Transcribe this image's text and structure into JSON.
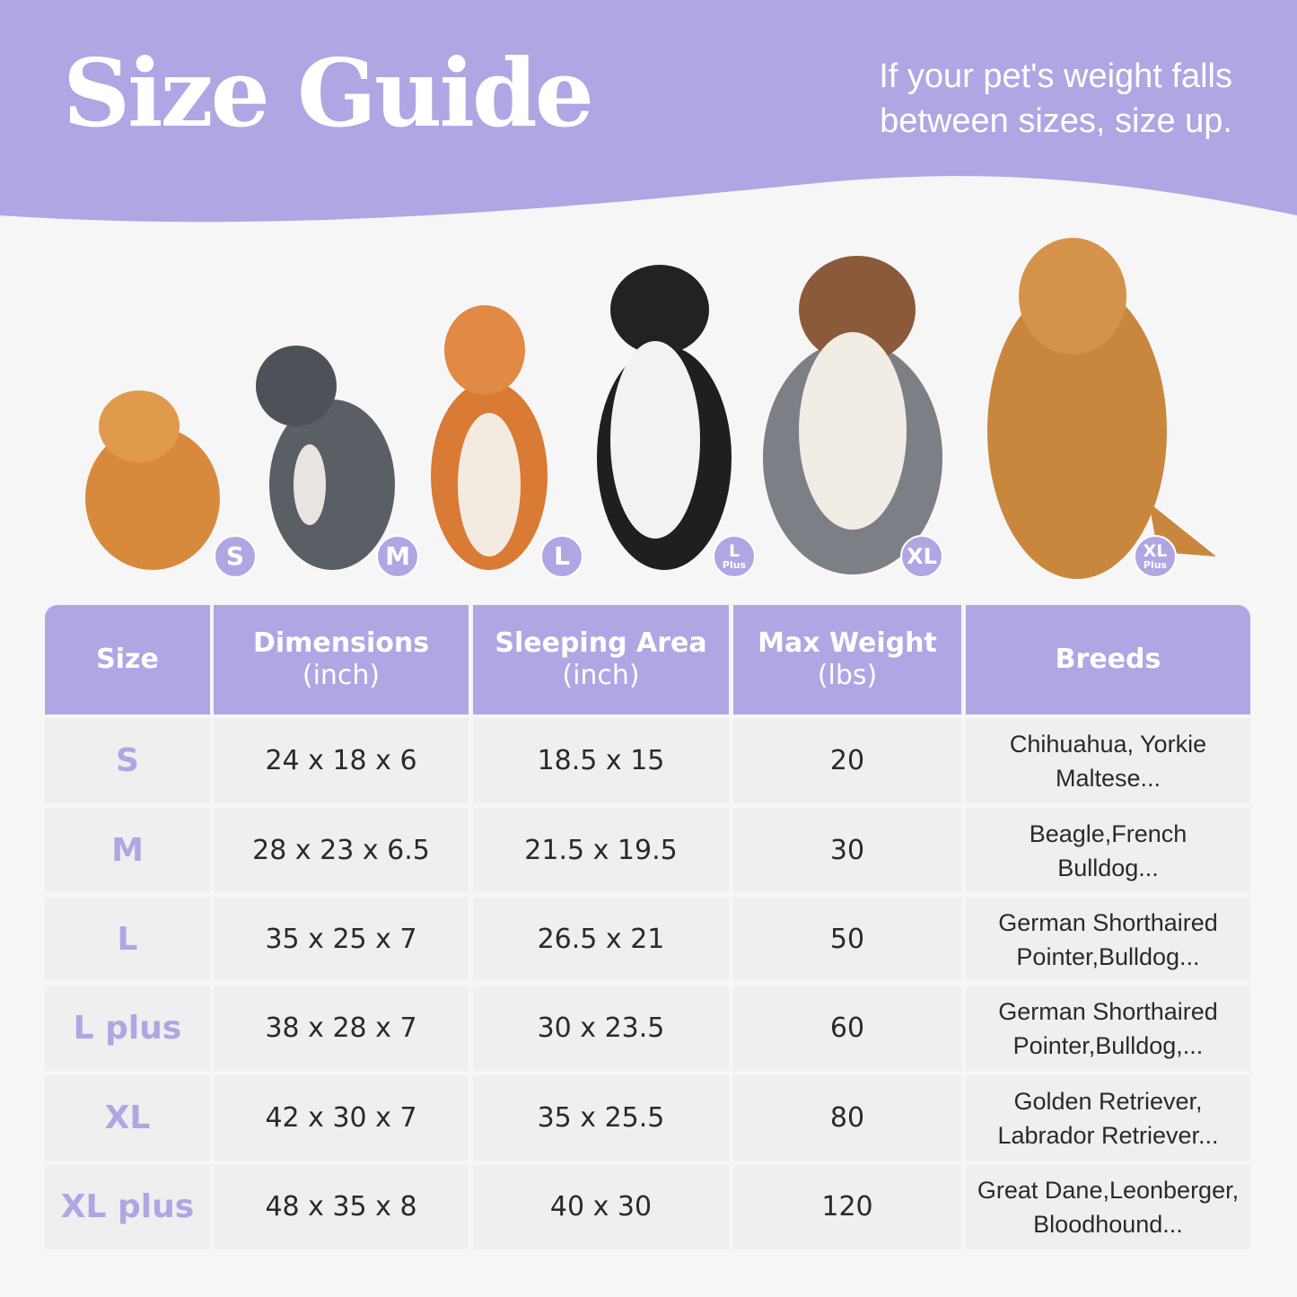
{
  "header": {
    "title": "Size Guide",
    "tip_line1": "If your pet's weight falls",
    "tip_line2": "between sizes, size up."
  },
  "colors": {
    "accent": "#b0a6e3",
    "background": "#f6f6f6",
    "row": "#eeefee",
    "text": "#2a2a2a"
  },
  "dogs": [
    {
      "badge": "S",
      "sub": ""
    },
    {
      "badge": "M",
      "sub": ""
    },
    {
      "badge": "L",
      "sub": ""
    },
    {
      "badge": "L",
      "sub": "Plus"
    },
    {
      "badge": "XL",
      "sub": ""
    },
    {
      "badge": "XL",
      "sub": "Plus"
    }
  ],
  "table": {
    "headers": [
      [
        "Size",
        ""
      ],
      [
        "Dimensions",
        "(inch)"
      ],
      [
        "Sleeping Area",
        "(inch)"
      ],
      [
        "Max Weight",
        "(lbs)"
      ],
      [
        "Breeds",
        ""
      ]
    ],
    "rows": [
      {
        "size": "S",
        "dimensions": "24 x 18 x 6",
        "sleeping": "18.5 x 15",
        "weight": "20",
        "breeds1": "Chihuahua, Yorkie",
        "breeds2": "Maltese..."
      },
      {
        "size": "M",
        "dimensions": "28 x 23 x 6.5",
        "sleeping": "21.5 x 19.5",
        "weight": "30",
        "breeds1": "Beagle,French",
        "breeds2": "Bulldog..."
      },
      {
        "size": "L",
        "dimensions": "35 x 25 x 7",
        "sleeping": "26.5 x 21",
        "weight": "50",
        "breeds1": "German Shorthaired",
        "breeds2": "Pointer,Bulldog..."
      },
      {
        "size": "L plus",
        "dimensions": "38 x 28 x 7",
        "sleeping": "30 x 23.5",
        "weight": "60",
        "breeds1": "German Shorthaired",
        "breeds2": "Pointer,Bulldog,..."
      },
      {
        "size": "XL",
        "dimensions": "42 x 30 x 7",
        "sleeping": "35 x 25.5",
        "weight": "80",
        "breeds1": "Golden Retriever,",
        "breeds2": "Labrador Retriever..."
      },
      {
        "size": "XL plus",
        "dimensions": "48 x 35 x 8",
        "sleeping": "40 x 30",
        "weight": "120",
        "breeds1": "Great Dane,Leonberger,",
        "breeds2": "Bloodhound..."
      }
    ]
  }
}
